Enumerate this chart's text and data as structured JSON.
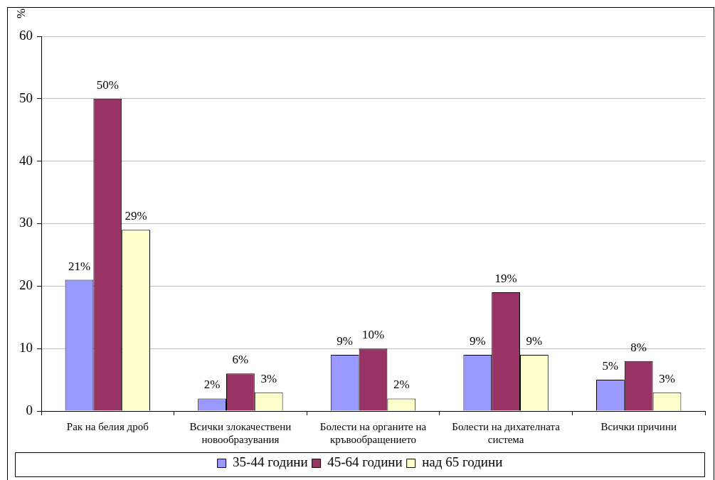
{
  "chart_data": {
    "type": "bar",
    "ylabel": "%",
    "categories": [
      "Рак на белия дроб",
      "Всички злокачествени новообразувания",
      "Болести на органите на кръвообращението",
      "Болести на дихателната система",
      "Всички причини"
    ],
    "series": [
      {
        "name": "35-44 години",
        "color": "#9999ff",
        "values": [
          21,
          2,
          9,
          9,
          5
        ],
        "value_labels": [
          "21%",
          "2%",
          "9%",
          "9%",
          "5%"
        ]
      },
      {
        "name": "45-64 години",
        "color": "#993366",
        "values": [
          50,
          6,
          10,
          19,
          8
        ],
        "value_labels": [
          "50%",
          "6%",
          "10%",
          "19%",
          "8%"
        ]
      },
      {
        "name": "над 65 години",
        "color": "#ffffcc",
        "values": [
          29,
          3,
          2,
          9,
          3
        ],
        "value_labels": [
          "29%",
          "3%",
          "2%",
          "9%",
          "3%"
        ]
      }
    ],
    "ylim": [
      0,
      60
    ],
    "yticks": [
      0,
      10,
      20,
      30,
      40,
      50,
      60
    ],
    "grid": "y",
    "legend": "bottom"
  }
}
